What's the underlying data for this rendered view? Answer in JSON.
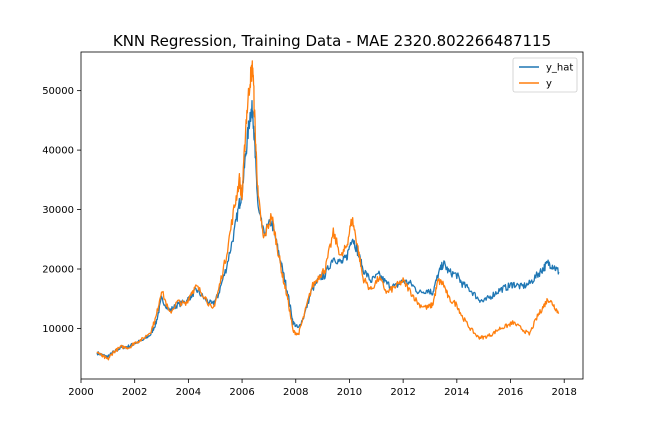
{
  "chart_data": {
    "type": "line",
    "title": "KNN Regression, Training Data - MAE 2320.802266487115",
    "xlabel": "",
    "ylabel": "",
    "xlim": [
      2000.0,
      2018.7
    ],
    "ylim": [
      1500,
      56500
    ],
    "x_ticks": [
      2000,
      2002,
      2004,
      2006,
      2008,
      2010,
      2012,
      2014,
      2016,
      2018
    ],
    "y_ticks": [
      10000,
      20000,
      30000,
      40000,
      50000
    ],
    "grid": false,
    "legend": "top-right",
    "series": [
      {
        "name": "y_hat",
        "color": "#1f77b4",
        "points": [
          [
            2000.6,
            5900
          ],
          [
            2000.8,
            5500
          ],
          [
            2001.0,
            5200
          ],
          [
            2001.2,
            6000
          ],
          [
            2001.5,
            6800
          ],
          [
            2001.8,
            7000
          ],
          [
            2002.0,
            7500
          ],
          [
            2002.3,
            8000
          ],
          [
            2002.6,
            9000
          ],
          [
            2002.8,
            11000
          ],
          [
            2003.0,
            15000
          ],
          [
            2003.3,
            13000
          ],
          [
            2003.6,
            14000
          ],
          [
            2003.9,
            14500
          ],
          [
            2004.1,
            15500
          ],
          [
            2004.3,
            16500
          ],
          [
            2004.6,
            15000
          ],
          [
            2004.9,
            14000
          ],
          [
            2005.1,
            15500
          ],
          [
            2005.4,
            20000
          ],
          [
            2005.7,
            26000
          ],
          [
            2005.9,
            31000
          ],
          [
            2006.0,
            33000
          ],
          [
            2006.15,
            40000
          ],
          [
            2006.3,
            46000
          ],
          [
            2006.4,
            47000
          ],
          [
            2006.5,
            38000
          ],
          [
            2006.6,
            30000
          ],
          [
            2006.8,
            26000
          ],
          [
            2007.1,
            28000
          ],
          [
            2007.3,
            24000
          ],
          [
            2007.5,
            20000
          ],
          [
            2007.7,
            16000
          ],
          [
            2007.9,
            11000
          ],
          [
            2008.1,
            10000
          ],
          [
            2008.3,
            12000
          ],
          [
            2008.6,
            16500
          ],
          [
            2008.9,
            18500
          ],
          [
            2009.1,
            19000
          ],
          [
            2009.4,
            22000
          ],
          [
            2009.7,
            21000
          ],
          [
            2009.9,
            22000
          ],
          [
            2010.1,
            25500
          ],
          [
            2010.3,
            23000
          ],
          [
            2010.5,
            20000
          ],
          [
            2010.8,
            18000
          ],
          [
            2011.1,
            19000
          ],
          [
            2011.4,
            17500
          ],
          [
            2011.7,
            17000
          ],
          [
            2012.0,
            18000
          ],
          [
            2012.3,
            17500
          ],
          [
            2012.6,
            16000
          ],
          [
            2012.9,
            16500
          ],
          [
            2013.1,
            16000
          ],
          [
            2013.3,
            19000
          ],
          [
            2013.5,
            21000
          ],
          [
            2013.7,
            19500
          ],
          [
            2014.0,
            19000
          ],
          [
            2014.2,
            17500
          ],
          [
            2014.5,
            16500
          ],
          [
            2014.8,
            15000
          ],
          [
            2015.0,
            14500
          ],
          [
            2015.3,
            15500
          ],
          [
            2015.6,
            16500
          ],
          [
            2015.9,
            17000
          ],
          [
            2016.1,
            17500
          ],
          [
            2016.4,
            17000
          ],
          [
            2016.7,
            17500
          ],
          [
            2017.0,
            19000
          ],
          [
            2017.2,
            20000
          ],
          [
            2017.4,
            21000
          ],
          [
            2017.6,
            20500
          ],
          [
            2017.8,
            19500
          ]
        ]
      },
      {
        "name": "y",
        "color": "#ff7f0e",
        "points": [
          [
            2000.6,
            6100
          ],
          [
            2000.8,
            5300
          ],
          [
            2001.0,
            4800
          ],
          [
            2001.2,
            6000
          ],
          [
            2001.5,
            6900
          ],
          [
            2001.8,
            6800
          ],
          [
            2002.0,
            7600
          ],
          [
            2002.3,
            8200
          ],
          [
            2002.6,
            9500
          ],
          [
            2002.8,
            12000
          ],
          [
            2003.0,
            16500
          ],
          [
            2003.3,
            12500
          ],
          [
            2003.6,
            14500
          ],
          [
            2003.9,
            14000
          ],
          [
            2004.1,
            16000
          ],
          [
            2004.3,
            17000
          ],
          [
            2004.6,
            15500
          ],
          [
            2004.9,
            13000
          ],
          [
            2005.1,
            16000
          ],
          [
            2005.4,
            22000
          ],
          [
            2005.7,
            30000
          ],
          [
            2005.9,
            35000
          ],
          [
            2006.0,
            32000
          ],
          [
            2006.15,
            45000
          ],
          [
            2006.3,
            52000
          ],
          [
            2006.4,
            54000
          ],
          [
            2006.5,
            42000
          ],
          [
            2006.6,
            32000
          ],
          [
            2006.8,
            25000
          ],
          [
            2007.1,
            29000
          ],
          [
            2007.3,
            24000
          ],
          [
            2007.5,
            19000
          ],
          [
            2007.7,
            15000
          ],
          [
            2007.9,
            9500
          ],
          [
            2008.1,
            9000
          ],
          [
            2008.3,
            12000
          ],
          [
            2008.6,
            17000
          ],
          [
            2008.9,
            19000
          ],
          [
            2009.1,
            20000
          ],
          [
            2009.4,
            26000
          ],
          [
            2009.7,
            22000
          ],
          [
            2009.9,
            24000
          ],
          [
            2010.1,
            28500
          ],
          [
            2010.3,
            24000
          ],
          [
            2010.5,
            18500
          ],
          [
            2010.8,
            16500
          ],
          [
            2011.1,
            18500
          ],
          [
            2011.4,
            16000
          ],
          [
            2011.7,
            17000
          ],
          [
            2012.0,
            18000
          ],
          [
            2012.3,
            16000
          ],
          [
            2012.6,
            14000
          ],
          [
            2012.9,
            13500
          ],
          [
            2013.1,
            14000
          ],
          [
            2013.3,
            18000
          ],
          [
            2013.5,
            17500
          ],
          [
            2013.7,
            15000
          ],
          [
            2014.0,
            14000
          ],
          [
            2014.2,
            12000
          ],
          [
            2014.5,
            10000
          ],
          [
            2014.8,
            8500
          ],
          [
            2015.0,
            8500
          ],
          [
            2015.3,
            9000
          ],
          [
            2015.6,
            10000
          ],
          [
            2015.9,
            10500
          ],
          [
            2016.1,
            11000
          ],
          [
            2016.4,
            10000
          ],
          [
            2016.7,
            9000
          ],
          [
            2017.0,
            12000
          ],
          [
            2017.2,
            13500
          ],
          [
            2017.4,
            15000
          ],
          [
            2017.6,
            14000
          ],
          [
            2017.8,
            12500
          ]
        ]
      }
    ]
  }
}
